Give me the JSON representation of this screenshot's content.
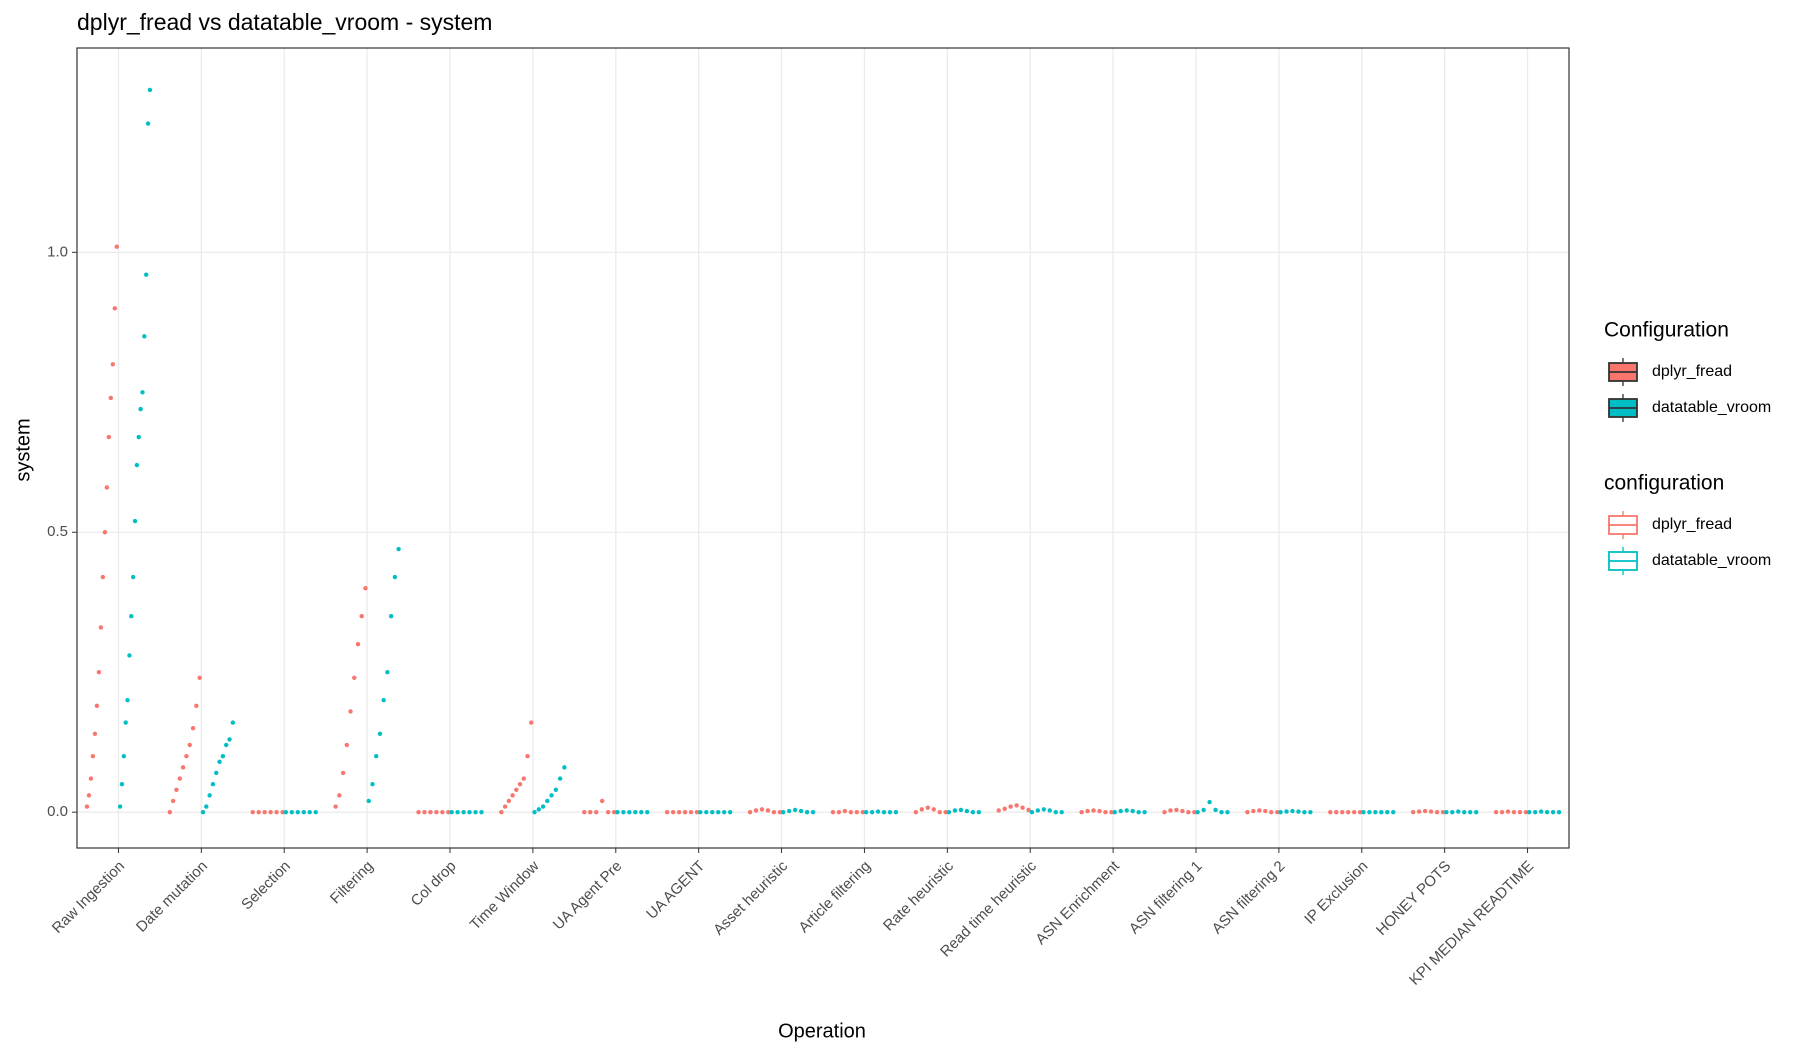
{
  "chart_data": {
    "type": "jitter",
    "title": "dplyr_fread vs datatable_vroom - system",
    "x_label": "Operation",
    "y_label": "system",
    "legend_titles": [
      "Configuration",
      "configuration"
    ],
    "categories": [
      "Raw Ingestion",
      "Date mutation",
      "Selection",
      "Filtering",
      "Col drop",
      "Time Window",
      "UA Agent Pre",
      "UA AGENT",
      "Asset heuristic",
      "Article filtering",
      "Rate heuristic",
      "Read time heuristic",
      "ASN Enrichment",
      "ASN filtering 1",
      "ASN filtering 2",
      "IP Exclusion",
      "HONEY POTS",
      "KPI MEDIAN READTIME"
    ],
    "series": [
      {
        "name": "dplyr_fread",
        "color": "#F8766D",
        "values": [
          [
            0.01,
            0.03,
            0.06,
            0.1,
            0.14,
            0.19,
            0.25,
            0.33,
            0.42,
            0.5,
            0.58,
            0.67,
            0.74,
            0.8,
            0.9,
            1.01
          ],
          [
            0,
            0.02,
            0.04,
            0.06,
            0.08,
            0.1,
            0.12,
            0.15,
            0.19,
            0.24
          ],
          [
            0,
            0,
            0,
            0,
            0,
            0
          ],
          [
            0.01,
            0.03,
            0.07,
            0.12,
            0.18,
            0.24,
            0.3,
            0.35,
            0.4
          ],
          [
            0,
            0,
            0,
            0,
            0,
            0
          ],
          [
            0,
            0.01,
            0.02,
            0.03,
            0.04,
            0.05,
            0.06,
            0.1,
            0.16
          ],
          [
            0,
            0,
            0,
            0.02,
            0,
            0
          ],
          [
            0,
            0,
            0,
            0,
            0,
            0
          ],
          [
            0,
            0.003,
            0.005,
            0.003,
            0,
            0
          ],
          [
            0,
            0,
            0.002,
            0,
            0,
            0
          ],
          [
            0,
            0.005,
            0.008,
            0.005,
            0,
            0
          ],
          [
            0.003,
            0.006,
            0.01,
            0.012,
            0.008,
            0.004
          ],
          [
            0,
            0.002,
            0.003,
            0.002,
            0,
            0
          ],
          [
            0,
            0.003,
            0.004,
            0.002,
            0,
            0
          ],
          [
            0,
            0.002,
            0.003,
            0.002,
            0,
            0
          ],
          [
            0,
            0,
            0,
            0,
            0,
            0
          ],
          [
            0,
            0.001,
            0.002,
            0.001,
            0,
            0
          ],
          [
            0,
            0,
            0.001,
            0,
            0,
            0
          ]
        ]
      },
      {
        "name": "datatable_vroom",
        "color": "#00BFC4",
        "values": [
          [
            0.01,
            0.05,
            0.1,
            0.16,
            0.2,
            0.28,
            0.35,
            0.42,
            0.52,
            0.62,
            0.67,
            0.72,
            0.75,
            0.85,
            0.96,
            1.23,
            1.29
          ],
          [
            0,
            0.01,
            0.03,
            0.05,
            0.07,
            0.09,
            0.1,
            0.12,
            0.13,
            0.16
          ],
          [
            0,
            0,
            0,
            0,
            0,
            0
          ],
          [
            0.02,
            0.05,
            0.1,
            0.14,
            0.2,
            0.25,
            0.35,
            0.42,
            0.47
          ],
          [
            0,
            0,
            0,
            0,
            0,
            0
          ],
          [
            0,
            0.005,
            0.01,
            0.02,
            0.03,
            0.04,
            0.06,
            0.08
          ],
          [
            0,
            0,
            0,
            0,
            0,
            0
          ],
          [
            0,
            0,
            0,
            0,
            0,
            0
          ],
          [
            0,
            0.002,
            0.004,
            0.002,
            0,
            0
          ],
          [
            0,
            0,
            0.001,
            0,
            0,
            0
          ],
          [
            0,
            0.003,
            0.004,
            0.002,
            0,
            0
          ],
          [
            0,
            0.003,
            0.005,
            0.003,
            0,
            0
          ],
          [
            0,
            0.002,
            0.003,
            0.002,
            0,
            0
          ],
          [
            0,
            0.004,
            0.018,
            0.004,
            0,
            0
          ],
          [
            0,
            0.001,
            0.002,
            0.001,
            0,
            0
          ],
          [
            0,
            0,
            0,
            0,
            0,
            0
          ],
          [
            0,
            0,
            0.001,
            0,
            0,
            0
          ],
          [
            0,
            0,
            0.001,
            0,
            0,
            0
          ]
        ]
      }
    ],
    "ylim": [
      -0.064,
      1.365
    ],
    "yticks": [
      {
        "value": 0,
        "label": "0.0"
      },
      {
        "value": 0.5,
        "label": "0.5"
      },
      {
        "value": 1,
        "label": "1.0"
      }
    ],
    "grid": true
  }
}
